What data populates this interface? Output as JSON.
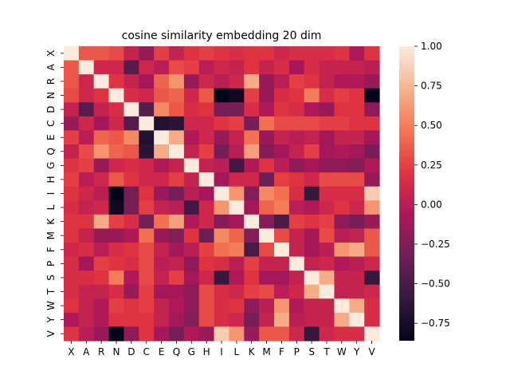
{
  "chart_data": {
    "type": "heatmap",
    "title": "cosine similarity embedding 20 dim",
    "xlabel": "",
    "ylabel": "",
    "labels": [
      "X",
      "A",
      "R",
      "N",
      "D",
      "C",
      "E",
      "Q",
      "G",
      "H",
      "I",
      "L",
      "K",
      "M",
      "F",
      "P",
      "S",
      "T",
      "W",
      "Y",
      "V"
    ],
    "colorbar": {
      "vmin": -0.86,
      "vmax": 1.0,
      "ticks": [
        1.0,
        0.75,
        0.5,
        0.25,
        0.0,
        -0.25,
        -0.5,
        -0.75
      ],
      "tick_labels": [
        "1.00",
        "0.75",
        "0.50",
        "0.25",
        "0.00",
        "−0.25",
        "−0.50",
        "−0.75"
      ]
    },
    "colormap": "rocket",
    "colormap_stops": [
      "#03051a",
      "#36193e",
      "#701f57",
      "#ad1759",
      "#e13342",
      "#f37651",
      "#f6b48f",
      "#faebdd"
    ],
    "grid": false,
    "matrix": [
      [
        1.0,
        0.35,
        0.35,
        0.3,
        0.05,
        -0.15,
        0.25,
        0.05,
        0.2,
        0.25,
        0.2,
        0.15,
        0.2,
        0.2,
        0.1,
        0.15,
        0.15,
        0.15,
        0.2,
        -0.05,
        0.2
      ],
      [
        0.35,
        1.0,
        0.1,
        0.1,
        -0.45,
        0.1,
        0.0,
        0.3,
        0.25,
        0.0,
        0.1,
        0.05,
        0.2,
        0.05,
        0.15,
        -0.1,
        0.15,
        0.05,
        0.05,
        0.05,
        0.0
      ],
      [
        0.35,
        0.1,
        1.0,
        0.2,
        0.05,
        -0.1,
        0.4,
        0.6,
        -0.15,
        0.1,
        0.0,
        0.1,
        0.7,
        -0.15,
        0.0,
        0.25,
        0.2,
        0.05,
        -0.05,
        -0.05,
        -0.15
      ],
      [
        0.3,
        0.1,
        0.2,
        1.0,
        0.15,
        0.1,
        0.35,
        0.4,
        0.1,
        0.35,
        -0.86,
        -0.8,
        0.25,
        -0.15,
        0.15,
        0.2,
        0.5,
        0.15,
        0.25,
        0.2,
        -0.86
      ],
      [
        0.05,
        -0.45,
        0.05,
        0.15,
        1.0,
        -0.45,
        0.55,
        0.35,
        0.15,
        0.2,
        -0.3,
        -0.3,
        0.15,
        -0.05,
        0.2,
        0.15,
        -0.05,
        -0.15,
        0.2,
        0.2,
        -0.2
      ],
      [
        -0.15,
        0.1,
        -0.1,
        0.1,
        -0.45,
        1.0,
        -0.7,
        -0.65,
        0.1,
        0.1,
        0.2,
        0.25,
        -0.3,
        0.45,
        0.3,
        0.3,
        0.3,
        0.25,
        0.25,
        0.2,
        0.2
      ],
      [
        0.25,
        0.0,
        0.4,
        0.35,
        0.55,
        -0.7,
        1.0,
        0.7,
        -0.05,
        0.1,
        -0.15,
        0.05,
        0.45,
        -0.15,
        0.05,
        0.0,
        0.05,
        -0.1,
        0.05,
        0.05,
        -0.1
      ],
      [
        0.05,
        0.3,
        0.6,
        0.4,
        0.35,
        -0.65,
        0.7,
        1.0,
        0.05,
        0.25,
        -0.3,
        0.0,
        0.65,
        -0.25,
        -0.1,
        0.05,
        0.25,
        -0.1,
        -0.05,
        -0.1,
        -0.3
      ],
      [
        0.2,
        0.25,
        -0.15,
        0.1,
        0.15,
        0.1,
        -0.05,
        0.05,
        1.0,
        0.05,
        0.0,
        -0.55,
        -0.05,
        0.2,
        0.0,
        -0.2,
        -0.1,
        -0.2,
        -0.2,
        -0.25,
        -0.05
      ],
      [
        0.25,
        0.0,
        0.1,
        0.35,
        0.2,
        0.1,
        0.1,
        0.25,
        0.05,
        1.0,
        -0.1,
        0.1,
        0.1,
        -0.35,
        0.25,
        0.2,
        0.1,
        0.3,
        0.3,
        0.3,
        -0.15
      ],
      [
        0.2,
        0.1,
        0.0,
        -0.86,
        -0.3,
        0.2,
        -0.15,
        -0.3,
        0.0,
        -0.1,
        1.0,
        0.6,
        -0.25,
        0.55,
        0.45,
        0.15,
        -0.6,
        0.15,
        0.15,
        0.15,
        0.85
      ],
      [
        0.15,
        0.05,
        0.1,
        -0.8,
        -0.3,
        0.25,
        0.05,
        0.0,
        -0.55,
        0.1,
        0.6,
        1.0,
        -0.1,
        0.4,
        0.5,
        0.0,
        -0.05,
        0.1,
        0.2,
        0.1,
        0.6
      ],
      [
        0.2,
        0.2,
        0.7,
        0.25,
        0.15,
        -0.3,
        0.45,
        0.65,
        -0.05,
        0.1,
        -0.25,
        -0.1,
        1.0,
        -0.25,
        -0.5,
        0.25,
        0.2,
        0.25,
        -0.2,
        -0.3,
        -0.15
      ],
      [
        0.2,
        0.05,
        -0.15,
        -0.15,
        -0.05,
        0.45,
        -0.15,
        -0.25,
        0.2,
        -0.35,
        0.55,
        0.4,
        -0.25,
        1.0,
        0.3,
        0.05,
        -0.1,
        0.3,
        0.0,
        0.05,
        0.35
      ],
      [
        0.1,
        0.15,
        0.0,
        0.15,
        0.2,
        0.3,
        0.05,
        -0.1,
        0.0,
        0.25,
        0.45,
        0.5,
        -0.5,
        0.3,
        1.0,
        0.05,
        -0.1,
        0.0,
        0.6,
        0.7,
        0.35
      ],
      [
        0.15,
        -0.1,
        0.25,
        0.2,
        0.15,
        0.3,
        0.0,
        0.05,
        -0.2,
        0.2,
        0.15,
        0.0,
        0.25,
        0.05,
        0.05,
        1.0,
        0.05,
        0.1,
        -0.05,
        0.0,
        0.1
      ],
      [
        0.15,
        0.15,
        0.2,
        0.5,
        -0.05,
        0.3,
        0.05,
        0.25,
        -0.1,
        0.1,
        -0.6,
        -0.05,
        0.2,
        -0.1,
        -0.1,
        0.05,
        1.0,
        0.7,
        0.05,
        0.05,
        -0.6
      ],
      [
        0.15,
        0.05,
        0.05,
        0.15,
        -0.15,
        0.25,
        -0.1,
        -0.1,
        -0.2,
        0.3,
        0.15,
        0.1,
        0.25,
        0.3,
        0.0,
        0.1,
        0.7,
        1.0,
        0.05,
        0.05,
        0.1
      ],
      [
        0.2,
        0.05,
        -0.05,
        0.25,
        0.2,
        0.25,
        0.05,
        -0.05,
        -0.2,
        0.3,
        0.15,
        0.2,
        -0.2,
        0.0,
        0.6,
        -0.05,
        0.05,
        0.05,
        1.0,
        0.7,
        0.15
      ],
      [
        -0.05,
        0.05,
        -0.05,
        0.2,
        0.2,
        0.2,
        0.05,
        -0.1,
        -0.25,
        0.3,
        0.15,
        0.1,
        -0.3,
        0.05,
        0.7,
        0.0,
        0.05,
        0.05,
        0.7,
        1.0,
        0.15
      ],
      [
        0.2,
        0.0,
        -0.15,
        -0.86,
        -0.2,
        0.2,
        -0.1,
        -0.3,
        -0.05,
        -0.15,
        0.85,
        0.6,
        -0.15,
        0.35,
        0.35,
        0.1,
        -0.6,
        0.1,
        0.15,
        0.15,
        1.0
      ]
    ]
  }
}
